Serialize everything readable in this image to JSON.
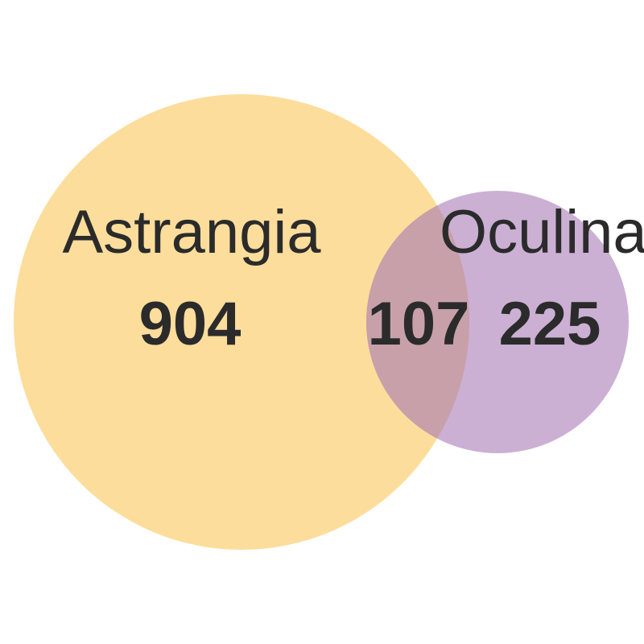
{
  "sets": [
    {
      "label": "Astrangia",
      "only_count": "904",
      "color": "#fcd27a"
    },
    {
      "label": "Oculina",
      "only_count": "225",
      "color": "#b995c6"
    }
  ],
  "intersection_count": "107",
  "colors": {
    "background": "#ffffff",
    "text": "#2b2b2b",
    "overlap": "#c89fa8"
  }
}
